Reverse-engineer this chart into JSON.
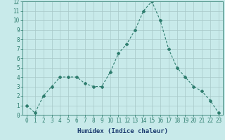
{
  "x": [
    0,
    1,
    2,
    3,
    4,
    5,
    6,
    7,
    8,
    9,
    10,
    11,
    12,
    13,
    14,
    15,
    16,
    17,
    18,
    19,
    20,
    21,
    22,
    23
  ],
  "y": [
    1,
    0.2,
    2,
    3,
    4,
    4,
    4,
    3.3,
    3,
    3,
    4.5,
    6.5,
    7.5,
    9,
    11,
    12,
    10,
    7,
    5,
    4,
    3,
    2.5,
    1.5,
    0.2
  ],
  "line_color": "#2e7d6e",
  "marker": "D",
  "marker_size": 2,
  "linewidth": 0.8,
  "bg_color": "#c8eaea",
  "grid_color": "#a8c8c8",
  "xlabel": "Humidex (Indice chaleur)",
  "xlim": [
    -0.5,
    23.5
  ],
  "ylim": [
    0,
    12
  ],
  "yticks": [
    0,
    1,
    2,
    3,
    4,
    5,
    6,
    7,
    8,
    9,
    10,
    11,
    12
  ],
  "xticks": [
    0,
    1,
    2,
    3,
    4,
    5,
    6,
    7,
    8,
    9,
    10,
    11,
    12,
    13,
    14,
    15,
    16,
    17,
    18,
    19,
    20,
    21,
    22,
    23
  ],
  "tick_fontsize": 5.5,
  "label_fontsize": 6.5,
  "label_color": "#1a3a6e"
}
